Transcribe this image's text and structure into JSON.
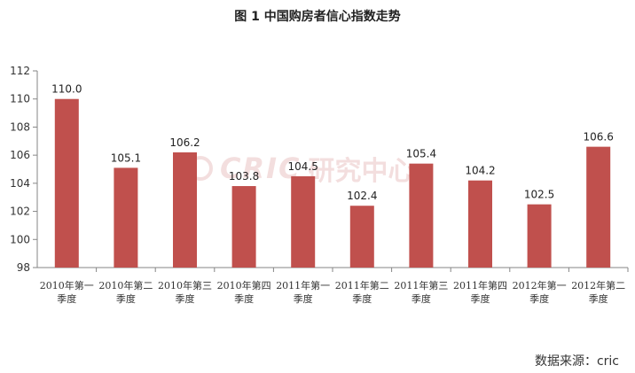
{
  "title": "图 1  中国购房者信心指数走势",
  "source": "数据来源：cric",
  "watermark": {
    "en": "CRIC",
    "cn": "研究中心"
  },
  "chart_data": {
    "type": "bar",
    "title": "图 1  中国购房者信心指数走势",
    "categories": [
      [
        "2010年第一",
        "季度"
      ],
      [
        "2010年第二",
        "季度"
      ],
      [
        "2010年第三",
        "季度"
      ],
      [
        "2010年第四",
        "季度"
      ],
      [
        "2011年第一",
        "季度"
      ],
      [
        "2011年第二",
        "季度"
      ],
      [
        "2011年第三",
        "季度"
      ],
      [
        "2011年第四",
        "季度"
      ],
      [
        "2012年第一",
        "季度"
      ],
      [
        "2012年第二",
        "季度"
      ]
    ],
    "values": [
      110.0,
      105.1,
      106.2,
      103.8,
      104.5,
      102.4,
      105.4,
      104.2,
      102.5,
      106.6
    ],
    "data_labels": [
      "110.0",
      "105.1",
      "106.2",
      "103.8",
      "104.5",
      "102.4",
      "105.4",
      "104.2",
      "102.5",
      "106.6"
    ],
    "ylim": [
      98,
      112
    ],
    "yticks": [
      98,
      100,
      102,
      104,
      106,
      108,
      110,
      112
    ],
    "xlabel": "",
    "ylabel": "",
    "grid": false,
    "bar_color": "#c0504d"
  }
}
